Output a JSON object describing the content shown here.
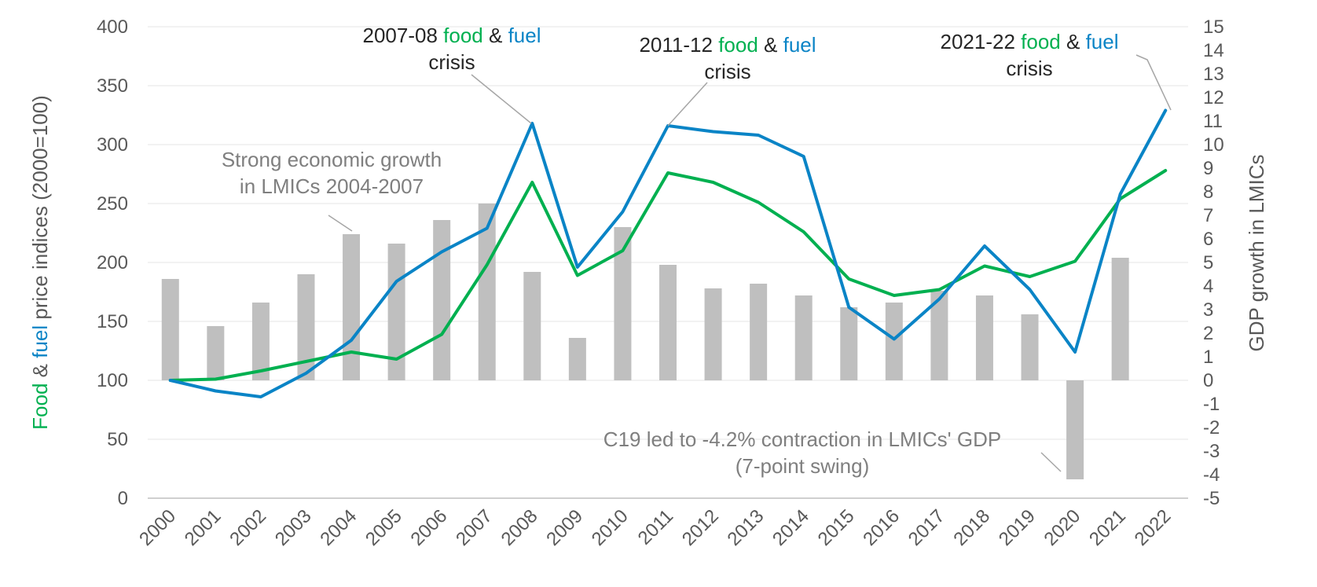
{
  "chart_data": {
    "type": "line",
    "categories": [
      "2000",
      "2001",
      "2002",
      "2003",
      "2004",
      "2005",
      "2006",
      "2007",
      "2008",
      "2009",
      "2010",
      "2011",
      "2012",
      "2013",
      "2014",
      "2015",
      "2016",
      "2017",
      "2018",
      "2019",
      "2020",
      "2021",
      "2022"
    ],
    "series": [
      {
        "name": "food",
        "axis": "left",
        "type": "line",
        "color": "#00b050",
        "values": [
          100,
          101,
          108,
          116,
          124,
          118,
          139,
          198,
          268,
          189,
          210,
          276,
          268,
          251,
          226,
          186,
          172,
          177,
          197,
          188,
          201,
          254,
          278
        ]
      },
      {
        "name": "fuel",
        "axis": "left",
        "type": "line",
        "color": "#0a84c6",
        "values": [
          100,
          91,
          86,
          106,
          134,
          184,
          209,
          229,
          318,
          196,
          243,
          316,
          311,
          308,
          290,
          162,
          135,
          169,
          214,
          177,
          124,
          258,
          329
        ]
      },
      {
        "name": "GDP growth in LMICs",
        "axis": "right",
        "type": "bar",
        "color": "#bfbfbf",
        "values": [
          4.3,
          2.3,
          3.3,
          4.5,
          6.2,
          5.8,
          6.8,
          7.5,
          4.6,
          1.8,
          6.5,
          4.9,
          3.9,
          4.1,
          3.6,
          3.1,
          3.3,
          3.8,
          3.6,
          2.8,
          -4.2,
          5.2,
          null
        ]
      }
    ],
    "left_axis": {
      "label_parts": [
        "Food",
        " & ",
        "fuel",
        " price indices (2000=100)"
      ],
      "ylim": [
        0,
        400
      ],
      "ticks": [
        0,
        50,
        100,
        150,
        200,
        250,
        300,
        350,
        400
      ]
    },
    "right_axis": {
      "label": "GDP growth in LMICs",
      "ylim": [
        -5,
        15
      ],
      "ticks": [
        -5,
        -4,
        -3,
        -2,
        -1,
        0,
        1,
        2,
        3,
        4,
        5,
        6,
        7,
        8,
        9,
        10,
        11,
        12,
        13,
        14,
        15
      ]
    },
    "grid": true,
    "annotations": [
      {
        "id": "crisis-2008",
        "line1": [
          "2007-08 ",
          "food",
          " & ",
          "fuel"
        ],
        "line2": "crisis",
        "target_year": "2008",
        "target_series": "fuel"
      },
      {
        "id": "crisis-2011",
        "line1": [
          "2011-12 ",
          "food",
          " & ",
          "fuel"
        ],
        "line2": "crisis",
        "target_year": "2011",
        "target_series": "fuel"
      },
      {
        "id": "crisis-2022",
        "line1": [
          "2021-22 ",
          "food",
          " & ",
          "fuel"
        ],
        "line2": "crisis",
        "target_year": "2022",
        "target_series": "fuel"
      },
      {
        "id": "growth-note",
        "line1": [
          "Strong economic growth"
        ],
        "line2": "in LMICs 2004-2007",
        "target_year": "2004",
        "target_series": "GDP growth in LMICs"
      },
      {
        "id": "c19-note",
        "line1": [
          "C19 led to -4.2% contraction in LMICs' GDP"
        ],
        "line2": "(7-point swing)",
        "target_year": "2020",
        "target_series": "GDP growth in LMICs"
      }
    ]
  }
}
